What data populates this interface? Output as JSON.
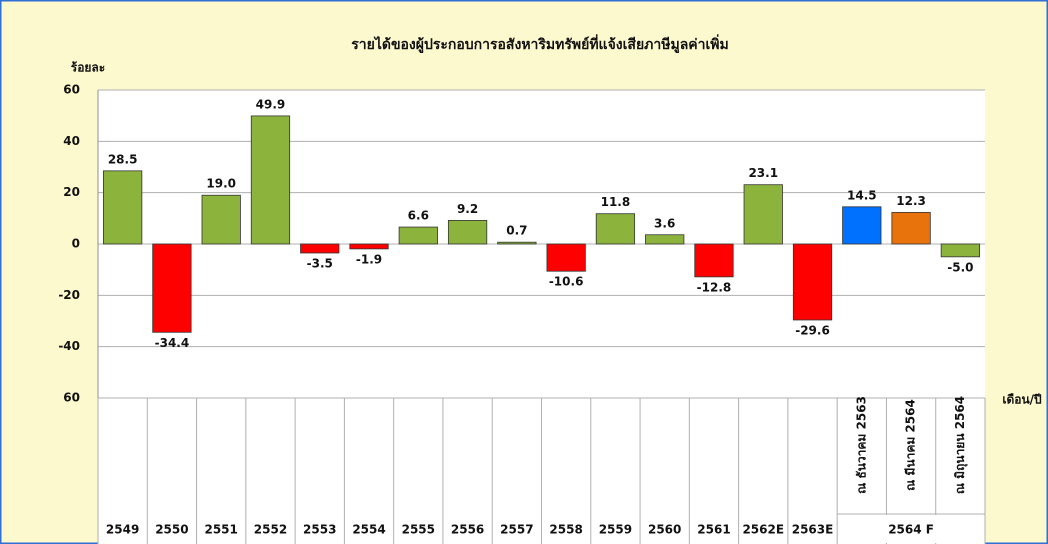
{
  "chart_data": {
    "type": "bar",
    "title": "รายได้ของผู้ประกอบการอสังหาริมทรัพย์ที่แจ้งเสียภาษีมูลค่าเพิ่ม",
    "y_label": "ร้อยละ",
    "x_label": "เดือน/ปี",
    "categories": [
      "2549",
      "2550",
      "2551",
      "2552",
      "2553",
      "2554",
      "2555",
      "2556",
      "2557",
      "2558",
      "2559",
      "2560",
      "2561",
      "2562E",
      "2563E",
      "ณ ธันวาคม 2563",
      "ณ มีนาคม 2564",
      "ณ มิถุนายน 2564"
    ],
    "group_label": "2564 F",
    "values": [
      28.5,
      -34.4,
      19.0,
      49.9,
      -3.5,
      -1.9,
      6.6,
      9.2,
      0.7,
      -10.6,
      11.8,
      3.6,
      -12.8,
      23.1,
      -29.6,
      14.5,
      12.3,
      -5.0
    ],
    "value_labels": [
      "28.5",
      "-34.4",
      "19.0",
      "49.9",
      "-3.5",
      "-1.9",
      "6.6",
      "9.2",
      "0.7",
      "-10.6",
      "11.8",
      "3.6",
      "-12.8",
      "23.1",
      "-29.6",
      "14.5",
      "12.3",
      "-5.0"
    ],
    "colors": [
      "#8cb43c",
      "#ff0000",
      "#8cb43c",
      "#8cb43c",
      "#ff0000",
      "#ff0000",
      "#8cb43c",
      "#8cb43c",
      "#8cb43c",
      "#ff0000",
      "#8cb43c",
      "#8cb43c",
      "#ff0000",
      "#8cb43c",
      "#ff0000",
      "#0070ff",
      "#e8730c",
      "#8cb43c"
    ],
    "ylim": [
      -60,
      60
    ],
    "yticks": [
      {
        "value": -60,
        "label": "60"
      },
      -40,
      -20,
      0,
      20,
      40,
      60
    ],
    "grid": true
  }
}
